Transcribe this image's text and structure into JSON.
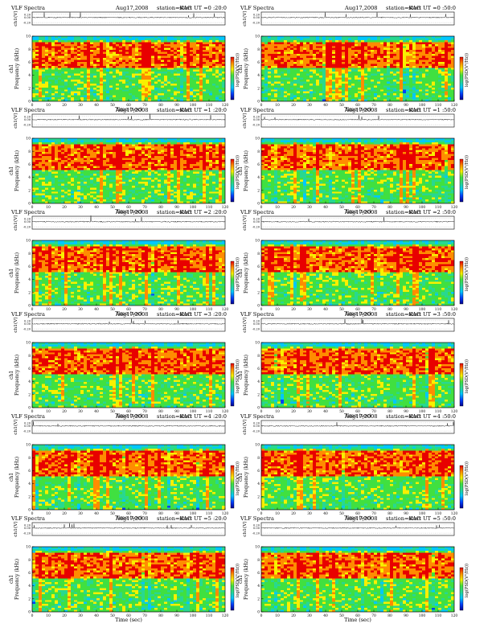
{
  "colors": {
    "background": "#ffffff",
    "axis": "#000000",
    "trace": "#222222",
    "colormap": [
      "#000090",
      "#0040ff",
      "#00c8ff",
      "#28d890",
      "#40e040",
      "#f8f000",
      "#ff8c00",
      "#e80000"
    ]
  },
  "colorbar_label": "log(PSD(V²/Hz))",
  "spectrogram_note": "Per-pixel spectrogram intensity not legible; procedurally textured",
  "chart_data": [
    {
      "type": "heatmap",
      "title_left": "VLF Spectra",
      "date": "Aug17,2008",
      "station": "station=KAG",
      "start": "start  UT =0 :20:0",
      "xlabel": "Time (sec)",
      "ylabel": "Frequency (kHz)",
      "channel": "ch1",
      "trace_label": "ch1(V)",
      "colorbar_label": "log(PSD(V²/Hz))",
      "xlim": [
        0,
        120
      ],
      "ylim": [
        0,
        10
      ],
      "xticks": [
        0,
        10,
        20,
        30,
        40,
        50,
        60,
        70,
        80,
        90,
        100,
        110,
        120
      ],
      "yticks": [
        0,
        2,
        4,
        6,
        8,
        10
      ],
      "trace_ticks": [
        "0.20",
        "0.00",
        "-0.20"
      ]
    },
    {
      "type": "heatmap",
      "title_left": "VLF Spectra",
      "date": "Aug17,2008",
      "station": "station=KAG",
      "start": "start  UT =0 :50:0",
      "xlabel": "Time (sec)",
      "ylabel": "Frequency (kHz)",
      "channel": "ch1",
      "trace_label": "ch1(V)",
      "colorbar_label": "log(PSD(V²/Hz))",
      "xlim": [
        0,
        120
      ],
      "ylim": [
        0,
        10
      ],
      "xticks": [
        0,
        10,
        20,
        30,
        40,
        50,
        60,
        70,
        80,
        90,
        100,
        110,
        120
      ],
      "yticks": [
        0,
        2,
        4,
        6,
        8,
        10
      ],
      "trace_ticks": [
        "0.20",
        "0.00",
        "-0.20"
      ]
    },
    {
      "type": "heatmap",
      "title_left": "VLF Spectra",
      "date": "Aug17,2008",
      "station": "station=KAG",
      "start": "start  UT =1 :20:0",
      "xlabel": "Time (sec)",
      "ylabel": "Frequency (kHz)",
      "channel": "ch1",
      "trace_label": "ch1(V)",
      "colorbar_label": "log(PSD(V²/Hz))",
      "xlim": [
        0,
        120
      ],
      "ylim": [
        0,
        10
      ],
      "xticks": [
        0,
        10,
        20,
        30,
        40,
        50,
        60,
        70,
        80,
        90,
        100,
        110,
        120
      ],
      "yticks": [
        0,
        2,
        4,
        6,
        8,
        10
      ],
      "trace_ticks": [
        "0.20",
        "0.00",
        "-0.20"
      ]
    },
    {
      "type": "heatmap",
      "title_left": "VLF Spectra",
      "date": "Aug17,2008",
      "station": "station=KAG",
      "start": "start  UT =1 :50:0",
      "xlabel": "Time (sec)",
      "ylabel": "Frequency (kHz)",
      "channel": "ch1",
      "trace_label": "ch1(V)",
      "colorbar_label": "log(PSD(V²/Hz))",
      "xlim": [
        0,
        120
      ],
      "ylim": [
        0,
        10
      ],
      "xticks": [
        0,
        10,
        20,
        30,
        40,
        50,
        60,
        70,
        80,
        90,
        100,
        110,
        120
      ],
      "yticks": [
        0,
        2,
        4,
        6,
        8,
        10
      ],
      "trace_ticks": [
        "0.20",
        "0.00",
        "-0.20"
      ]
    },
    {
      "type": "heatmap",
      "title_left": "VLF Spectra",
      "date": "Aug17,2008",
      "station": "station=KAG",
      "start": "start  UT =2 :20:0",
      "xlabel": "Time (sec)",
      "ylabel": "Frequency (kHz)",
      "channel": "ch1",
      "trace_label": "ch1(V)",
      "colorbar_label": "log(PSD(V²/Hz))",
      "xlim": [
        0,
        120
      ],
      "ylim": [
        0,
        10
      ],
      "xticks": [
        0,
        10,
        20,
        30,
        40,
        50,
        60,
        70,
        80,
        90,
        100,
        110,
        120
      ],
      "yticks": [
        0,
        2,
        4,
        6,
        8,
        10
      ],
      "trace_ticks": [
        "0.20",
        "0.00",
        "-0.20"
      ]
    },
    {
      "type": "heatmap",
      "title_left": "VLF Spectra",
      "date": "Aug17,2008",
      "station": "station=KAG",
      "start": "start  UT =2 :50:0",
      "xlabel": "Time (sec)",
      "ylabel": "Frequency (kHz)",
      "channel": "ch1",
      "trace_label": "ch1(V)",
      "colorbar_label": "log(PSD(V²/Hz))",
      "xlim": [
        0,
        120
      ],
      "ylim": [
        0,
        10
      ],
      "xticks": [
        0,
        10,
        20,
        30,
        40,
        50,
        60,
        70,
        80,
        90,
        100,
        110,
        120
      ],
      "yticks": [
        0,
        2,
        4,
        6,
        8,
        10
      ],
      "trace_ticks": [
        "0.20",
        "0.00",
        "-0.20"
      ]
    },
    {
      "type": "heatmap",
      "title_left": "VLF Spectra",
      "date": "Aug17,2008",
      "station": "station=KAG",
      "start": "start  UT =3 :20:0",
      "xlabel": "Time (sec)",
      "ylabel": "Frequency (kHz)",
      "channel": "ch1",
      "trace_label": "ch1(V)",
      "colorbar_label": "log(PSD(V²/Hz))",
      "xlim": [
        0,
        120
      ],
      "ylim": [
        0,
        10
      ],
      "xticks": [
        0,
        10,
        20,
        30,
        40,
        50,
        60,
        70,
        80,
        90,
        100,
        110,
        120
      ],
      "yticks": [
        0,
        2,
        4,
        6,
        8,
        10
      ],
      "trace_ticks": [
        "0.20",
        "0.00",
        "-0.20"
      ]
    },
    {
      "type": "heatmap",
      "title_left": "VLF Spectra",
      "date": "Aug17,2008",
      "station": "station=KAG",
      "start": "start  UT =3 :50:0",
      "xlabel": "Time (sec)",
      "ylabel": "Frequency (kHz)",
      "channel": "ch1",
      "trace_label": "ch1(V)",
      "colorbar_label": "log(PSD(V²/Hz))",
      "xlim": [
        0,
        120
      ],
      "ylim": [
        0,
        10
      ],
      "xticks": [
        0,
        10,
        20,
        30,
        40,
        50,
        60,
        70,
        80,
        90,
        100,
        110,
        120
      ],
      "yticks": [
        0,
        2,
        4,
        6,
        8,
        10
      ],
      "trace_ticks": [
        "0.20",
        "0.00",
        "-0.20"
      ]
    },
    {
      "type": "heatmap",
      "title_left": "VLF Spectra",
      "date": "Aug17,2008",
      "station": "station=KAG",
      "start": "start  UT =4 :20:0",
      "xlabel": "Time (sec)",
      "ylabel": "Frequency (kHz)",
      "channel": "ch1",
      "trace_label": "ch1(V)",
      "colorbar_label": "log(PSD(V²/Hz))",
      "xlim": [
        0,
        120
      ],
      "ylim": [
        0,
        10
      ],
      "xticks": [
        0,
        10,
        20,
        30,
        40,
        50,
        60,
        70,
        80,
        90,
        100,
        110,
        120
      ],
      "yticks": [
        0,
        2,
        4,
        6,
        8,
        10
      ],
      "trace_ticks": [
        "0.20",
        "0.00",
        "-0.20"
      ]
    },
    {
      "type": "heatmap",
      "title_left": "VLF Spectra",
      "date": "Aug17,2008",
      "station": "station=KAG",
      "start": "start  UT =4 :50:0",
      "xlabel": "Time (sec)",
      "ylabel": "Frequency (kHz)",
      "channel": "ch1",
      "trace_label": "ch1(V)",
      "colorbar_label": "log(PSD(V²/Hz))",
      "xlim": [
        0,
        120
      ],
      "ylim": [
        0,
        10
      ],
      "xticks": [
        0,
        10,
        20,
        30,
        40,
        50,
        60,
        70,
        80,
        90,
        100,
        110,
        120
      ],
      "yticks": [
        0,
        2,
        4,
        6,
        8,
        10
      ],
      "trace_ticks": [
        "0.20",
        "0.00",
        "-0.20"
      ]
    },
    {
      "type": "heatmap",
      "title_left": "VLF Spectra",
      "date": "Aug17,2008",
      "station": "station=KAG",
      "start": "start  UT =5 :20:0",
      "xlabel": "Time (sec)",
      "ylabel": "Frequency (kHz)",
      "channel": "ch1",
      "trace_label": "ch1(V)",
      "colorbar_label": "log(PSD(V²/Hz))",
      "xlim": [
        0,
        120
      ],
      "ylim": [
        0,
        10
      ],
      "xticks": [
        0,
        10,
        20,
        30,
        40,
        50,
        60,
        70,
        80,
        90,
        100,
        110,
        120
      ],
      "yticks": [
        0,
        2,
        4,
        6,
        8,
        10
      ],
      "trace_ticks": [
        "0.20",
        "0.00",
        "-0.20"
      ]
    },
    {
      "type": "heatmap",
      "title_left": "VLF Spectra",
      "date": "Aug17,2008",
      "station": "station=KAG",
      "start": "start  UT =5 :50:0",
      "xlabel": "Time (sec)",
      "ylabel": "Frequency (kHz)",
      "channel": "ch1",
      "trace_label": "ch1(V)",
      "colorbar_label": "log(PSD(V²/Hz))",
      "xlim": [
        0,
        120
      ],
      "ylim": [
        0,
        10
      ],
      "xticks": [
        0,
        10,
        20,
        30,
        40,
        50,
        60,
        70,
        80,
        90,
        100,
        110,
        120
      ],
      "yticks": [
        0,
        2,
        4,
        6,
        8,
        10
      ],
      "trace_ticks": [
        "0.20",
        "0.00",
        "-0.20"
      ]
    }
  ]
}
